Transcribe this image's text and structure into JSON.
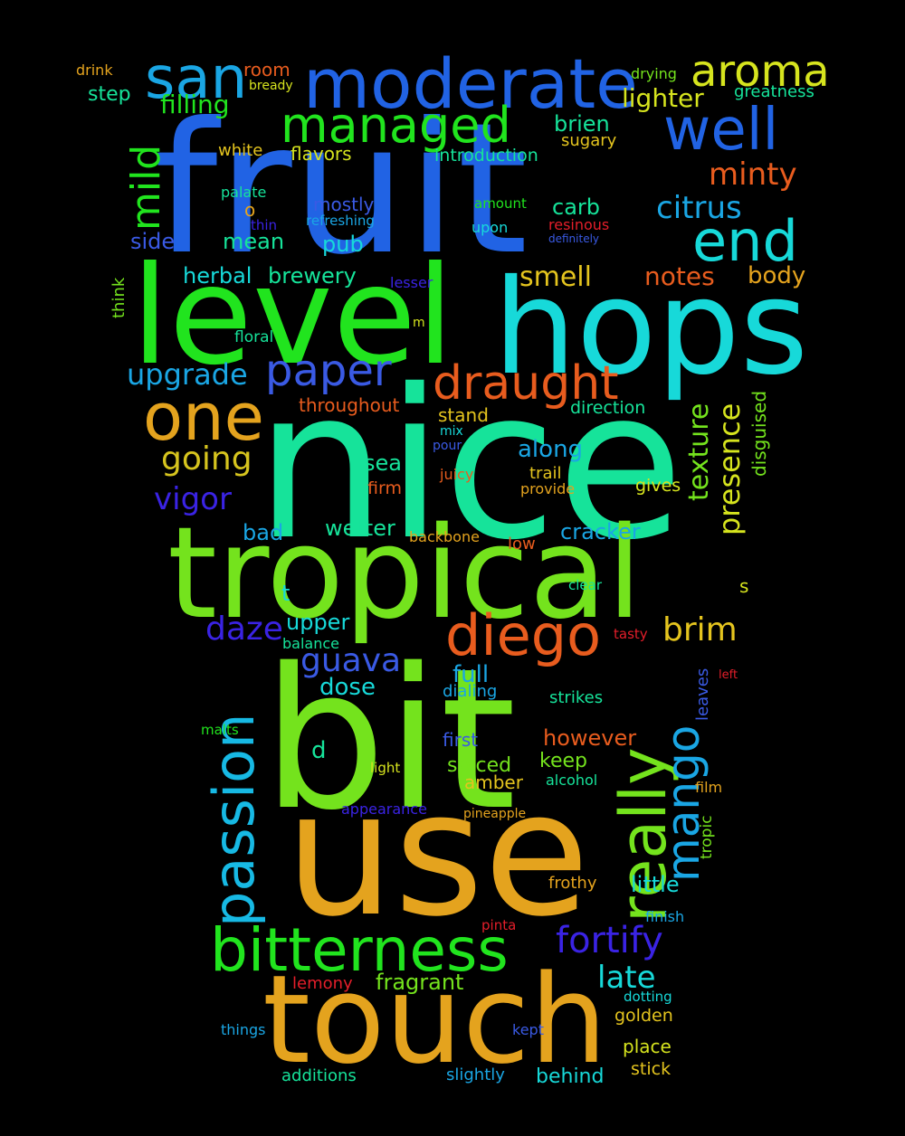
{
  "colors": {
    "background": "#000000",
    "blue": "#2163e4",
    "green": "#21e41e",
    "lime": "#74e31d",
    "cyan": "#17d9d9",
    "teal": "#16e39a",
    "orange": "#e4a31e",
    "red_orange": "#e85c1e",
    "indigo": "#3a23e4",
    "yellow": "#d6e41e",
    "sky": "#1aa6e4",
    "red": "#e41e2a"
  },
  "words": [
    "fruit",
    "nice",
    "bit",
    "use",
    "level",
    "hops",
    "tropical",
    "touch",
    "moderate",
    "san",
    "aroma",
    "well",
    "managed",
    "end",
    "one",
    "paper",
    "draught",
    "mild",
    "citrus",
    "minty",
    "diego",
    "passion",
    "bitterness",
    "really",
    "mango",
    "upgrade",
    "fortify",
    "brim",
    "daze",
    "guava",
    "vigor",
    "going",
    "texture",
    "presence",
    "late",
    "lighter",
    "filling",
    "drink",
    "room",
    "bready",
    "drying",
    "greatness",
    "step",
    "brien",
    "sugary",
    "white",
    "flavors",
    "introduction",
    "palate",
    "o",
    "mostly",
    "carb",
    "amount",
    "upon",
    "resinous",
    "definitely",
    "thin",
    "refreshing",
    "side",
    "mean",
    "pub",
    "herbal",
    "brewery",
    "smell",
    "notes",
    "body",
    "think",
    "lesser",
    "floral",
    "m",
    "throughout",
    "direction",
    "disguised",
    "stand",
    "mix",
    "pour",
    "along",
    "sea",
    "juicy",
    "trail",
    "firm",
    "provide",
    "gives",
    "bad",
    "wetter",
    "cracker",
    "backbone",
    "low",
    "clear",
    "t",
    "s",
    "upper",
    "tasty",
    "balance",
    "full",
    "left",
    "dose",
    "dialing",
    "strikes",
    "leaves",
    "d",
    "malts",
    "first",
    "however",
    "spiced",
    "keep",
    "light",
    "amber",
    "alcohol",
    "appearance",
    "pineapple",
    "film",
    "tropic",
    "little",
    "frothy",
    "finish",
    "pinta",
    "fragrant",
    "lemony",
    "dotting",
    "golden",
    "things",
    "kept",
    "place",
    "additions",
    "slightly",
    "behind",
    "stick"
  ]
}
